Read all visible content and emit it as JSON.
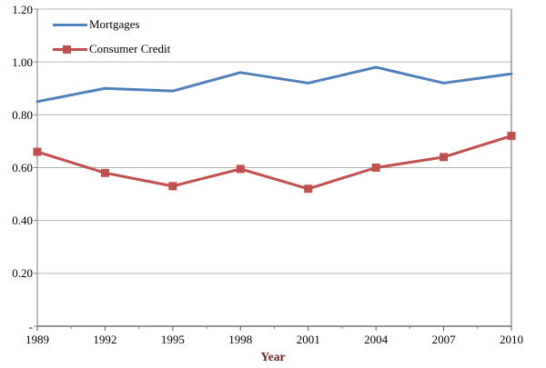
{
  "chart_data": {
    "type": "line",
    "title": "",
    "xlabel": "Year",
    "xlabel_color": "#632423",
    "ylabel": "",
    "categories": [
      "1989",
      "1992",
      "1995",
      "1998",
      "2001",
      "2004",
      "2007",
      "2010"
    ],
    "series": [
      {
        "name": "Mortgages",
        "color": "#4F81BD",
        "marker": "none",
        "values": [
          0.85,
          0.9,
          0.89,
          0.96,
          0.92,
          0.98,
          0.92,
          0.955
        ]
      },
      {
        "name": "Consumer Credit",
        "color": "#C0504D",
        "marker": "square",
        "values": [
          0.66,
          0.58,
          0.53,
          0.595,
          0.52,
          0.6,
          0.64,
          0.72
        ]
      }
    ],
    "ylim": [
      0,
      1.2
    ],
    "ytick_step": 0.2,
    "ytick_labels": [
      "-",
      "0.20",
      "0.40",
      "0.60",
      "0.80",
      "1.00",
      "1.20"
    ],
    "grid": true,
    "legend_position": "top-left-inside",
    "colors": {
      "gridline": "#b3b3b3",
      "axis": "#595959",
      "border": "#808080",
      "background": "#ffffff"
    }
  }
}
